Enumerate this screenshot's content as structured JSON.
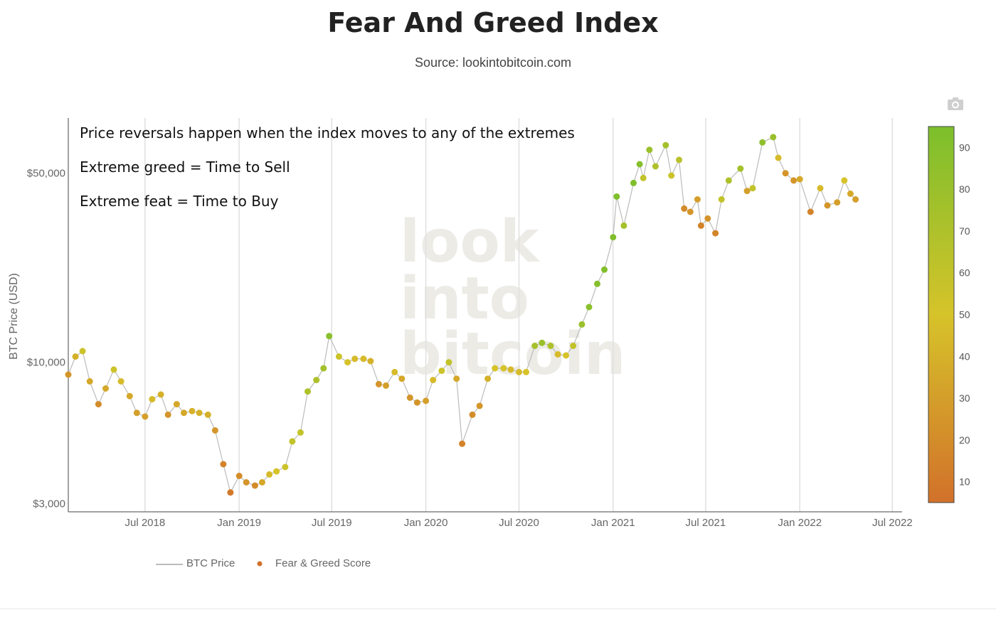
{
  "header": {
    "title": "Fear And Greed Index",
    "subtitle": "Source: lookintobitcoin.com"
  },
  "annotations": [
    "Price reversals happen when the index moves to any of  the extremes",
    "Extreme greed = Time to Sell",
    "Extreme feat = Time to Buy"
  ],
  "watermark": [
    "look",
    "into",
    "bitcoin"
  ],
  "colors": {
    "fear": "#d2712a",
    "neutral": "#d6c32a",
    "greed": "#7cbf2c",
    "price_line": "#bbbbbb",
    "grid": "#e0e0e0",
    "axis_text": "#666666"
  },
  "chart_data": {
    "type": "scatter",
    "title": "Fear And Greed Index",
    "subtitle": "Source: lookintobitcoin.com",
    "ylabel": "BTC Price (USD)",
    "yscale": "log",
    "ylim": [
      2800,
      80000
    ],
    "xlim": [
      "2018-02-01",
      "2022-07-20"
    ],
    "x_ticks": [
      {
        "date": "2018-07-01",
        "label": "Jul 2018"
      },
      {
        "date": "2019-01-01",
        "label": "Jan 2019"
      },
      {
        "date": "2019-07-01",
        "label": "Jul 2019"
      },
      {
        "date": "2020-01-01",
        "label": "Jan 2020"
      },
      {
        "date": "2020-07-01",
        "label": "Jul 2020"
      },
      {
        "date": "2021-01-01",
        "label": "Jan 2021"
      },
      {
        "date": "2021-07-01",
        "label": "Jul 2021"
      },
      {
        "date": "2022-01-01",
        "label": "Jan 2022"
      },
      {
        "date": "2022-07-01",
        "label": "Jul 2022"
      }
    ],
    "y_ticks": [
      {
        "value": 3000,
        "label": "$3,000"
      },
      {
        "value": 10000,
        "label": "$10,000"
      },
      {
        "value": 50000,
        "label": "$50,000"
      }
    ],
    "legend": [
      "BTC Price",
      "Fear & Greed Score"
    ],
    "legend_position": "bottom-left",
    "colorbar": {
      "range": [
        5,
        95
      ],
      "ticks": [
        10,
        20,
        30,
        40,
        50,
        60,
        70,
        80,
        90
      ]
    },
    "series": [
      {
        "name": "BTC Price",
        "points": [
          [
            "2018-02-01",
            9000,
            25
          ],
          [
            "2018-02-15",
            10500,
            40
          ],
          [
            "2018-03-01",
            11000,
            55
          ],
          [
            "2018-03-15",
            8500,
            35
          ],
          [
            "2018-04-01",
            7000,
            20
          ],
          [
            "2018-04-15",
            8000,
            35
          ],
          [
            "2018-05-01",
            9400,
            55
          ],
          [
            "2018-05-15",
            8500,
            45
          ],
          [
            "2018-06-01",
            7500,
            35
          ],
          [
            "2018-06-15",
            6500,
            30
          ],
          [
            "2018-07-01",
            6300,
            30
          ],
          [
            "2018-07-15",
            7300,
            45
          ],
          [
            "2018-08-01",
            7600,
            40
          ],
          [
            "2018-08-15",
            6400,
            25
          ],
          [
            "2018-09-01",
            7000,
            35
          ],
          [
            "2018-09-15",
            6500,
            35
          ],
          [
            "2018-10-01",
            6600,
            40
          ],
          [
            "2018-10-15",
            6500,
            40
          ],
          [
            "2018-11-01",
            6400,
            40
          ],
          [
            "2018-11-15",
            5600,
            25
          ],
          [
            "2018-12-01",
            4200,
            15
          ],
          [
            "2018-12-15",
            3300,
            10
          ],
          [
            "2019-01-01",
            3800,
            20
          ],
          [
            "2019-01-15",
            3600,
            25
          ],
          [
            "2019-02-01",
            3500,
            20
          ],
          [
            "2019-02-15",
            3600,
            35
          ],
          [
            "2019-03-01",
            3850,
            45
          ],
          [
            "2019-03-15",
            3950,
            50
          ],
          [
            "2019-04-01",
            4100,
            55
          ],
          [
            "2019-04-15",
            5100,
            60
          ],
          [
            "2019-05-01",
            5500,
            60
          ],
          [
            "2019-05-15",
            7800,
            70
          ],
          [
            "2019-06-01",
            8600,
            70
          ],
          [
            "2019-06-15",
            9500,
            75
          ],
          [
            "2019-06-26",
            12500,
            88
          ],
          [
            "2019-07-15",
            10500,
            55
          ],
          [
            "2019-08-01",
            10000,
            50
          ],
          [
            "2019-08-15",
            10300,
            45
          ],
          [
            "2019-09-01",
            10300,
            45
          ],
          [
            "2019-09-15",
            10100,
            40
          ],
          [
            "2019-10-01",
            8300,
            25
          ],
          [
            "2019-10-15",
            8200,
            30
          ],
          [
            "2019-11-01",
            9200,
            45
          ],
          [
            "2019-11-15",
            8700,
            35
          ],
          [
            "2019-12-01",
            7400,
            25
          ],
          [
            "2019-12-15",
            7100,
            25
          ],
          [
            "2020-01-01",
            7200,
            30
          ],
          [
            "2020-01-15",
            8600,
            45
          ],
          [
            "2020-02-01",
            9300,
            55
          ],
          [
            "2020-02-15",
            10000,
            60
          ],
          [
            "2020-03-01",
            8700,
            35
          ],
          [
            "2020-03-12",
            5000,
            15
          ],
          [
            "2020-04-01",
            6400,
            20
          ],
          [
            "2020-04-15",
            6900,
            25
          ],
          [
            "2020-05-01",
            8700,
            40
          ],
          [
            "2020-05-15",
            9500,
            50
          ],
          [
            "2020-06-01",
            9500,
            50
          ],
          [
            "2020-06-15",
            9400,
            45
          ],
          [
            "2020-07-01",
            9200,
            45
          ],
          [
            "2020-07-15",
            9200,
            50
          ],
          [
            "2020-08-01",
            11500,
            75
          ],
          [
            "2020-08-15",
            11800,
            80
          ],
          [
            "2020-09-01",
            11500,
            70
          ],
          [
            "2020-09-15",
            10700,
            45
          ],
          [
            "2020-10-01",
            10600,
            50
          ],
          [
            "2020-10-15",
            11500,
            60
          ],
          [
            "2020-11-01",
            13800,
            80
          ],
          [
            "2020-11-15",
            16000,
            88
          ],
          [
            "2020-12-01",
            19500,
            90
          ],
          [
            "2020-12-15",
            22000,
            92
          ],
          [
            "2021-01-01",
            29000,
            93
          ],
          [
            "2021-01-08",
            41000,
            93
          ],
          [
            "2021-01-22",
            32000,
            75
          ],
          [
            "2021-02-10",
            46000,
            93
          ],
          [
            "2021-02-22",
            54000,
            90
          ],
          [
            "2021-03-01",
            48000,
            60
          ],
          [
            "2021-03-13",
            61000,
            80
          ],
          [
            "2021-03-25",
            53000,
            70
          ],
          [
            "2021-04-14",
            63500,
            75
          ],
          [
            "2021-04-25",
            49000,
            55
          ],
          [
            "2021-05-10",
            56000,
            65
          ],
          [
            "2021-05-20",
            37000,
            20
          ],
          [
            "2021-06-01",
            36000,
            25
          ],
          [
            "2021-06-15",
            40000,
            30
          ],
          [
            "2021-06-22",
            32000,
            15
          ],
          [
            "2021-07-05",
            34000,
            25
          ],
          [
            "2021-07-20",
            30000,
            15
          ],
          [
            "2021-08-01",
            40000,
            60
          ],
          [
            "2021-08-15",
            47000,
            70
          ],
          [
            "2021-09-07",
            52000,
            75
          ],
          [
            "2021-09-20",
            43000,
            30
          ],
          [
            "2021-10-01",
            44000,
            60
          ],
          [
            "2021-10-20",
            65000,
            85
          ],
          [
            "2021-11-10",
            68000,
            80
          ],
          [
            "2021-11-20",
            57000,
            45
          ],
          [
            "2021-12-04",
            50000,
            25
          ],
          [
            "2021-12-20",
            47000,
            25
          ],
          [
            "2022-01-01",
            47500,
            35
          ],
          [
            "2022-01-22",
            36000,
            15
          ],
          [
            "2022-02-10",
            44000,
            45
          ],
          [
            "2022-02-24",
            38000,
            25
          ],
          [
            "2022-03-15",
            39000,
            30
          ],
          [
            "2022-03-29",
            47000,
            50
          ],
          [
            "2022-04-10",
            42000,
            35
          ],
          [
            "2022-04-20",
            40000,
            30
          ]
        ]
      }
    ]
  }
}
